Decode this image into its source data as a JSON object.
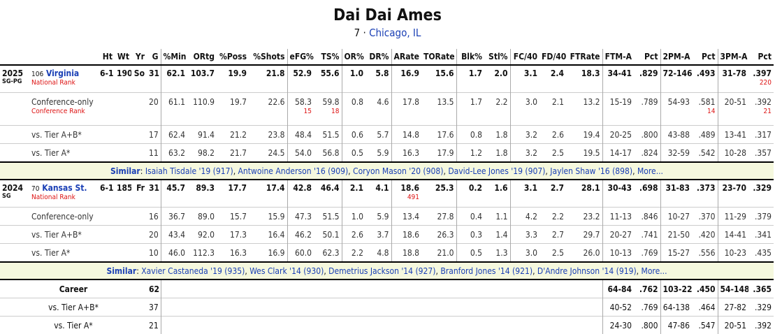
{
  "header": {
    "name": "Dai Dai Ames",
    "number": "7",
    "separator": "·",
    "hometown": "Chicago, IL"
  },
  "columns": [
    "Ht",
    "Wt",
    "Yr",
    "G",
    "%Min",
    "ORtg",
    "%Poss",
    "%Shots",
    "eFG%",
    "TS%",
    "OR%",
    "DR%",
    "ARate",
    "TORate",
    "Blk%",
    "Stl%",
    "FC/40",
    "FD/40",
    "FTRate",
    "FTM-A",
    "Pct",
    "2PM-A",
    "Pct",
    "3PM-A",
    "Pct"
  ],
  "seasons": [
    {
      "year": "2025",
      "position": "SG-PG",
      "team_rank": "106",
      "team": "Virginia",
      "rank_label": "National Rank",
      "values": [
        "6-1",
        "190",
        "So",
        "31",
        "62.1",
        "103.7",
        "19.9",
        "21.8",
        "52.9",
        "55.6",
        "1.0",
        "5.8",
        "16.9",
        "15.6",
        "1.7",
        "2.0",
        "3.1",
        "2.4",
        "18.3",
        "34-41",
        ".829",
        "72-146",
        ".493",
        "31-78",
        ".397"
      ],
      "ranks": {
        "24": "220"
      },
      "splits": [
        {
          "label": "Conference-only",
          "rank_label": "Conference Rank",
          "values": [
            null,
            null,
            null,
            "20",
            "61.1",
            "110.9",
            "19.7",
            "22.6",
            "58.3",
            "59.8",
            "0.8",
            "4.6",
            "17.8",
            "13.5",
            "1.7",
            "2.2",
            "3.0",
            "2.1",
            "13.2",
            "15-19",
            ".789",
            "54-93",
            ".581",
            "20-51",
            ".392"
          ],
          "ranks": {
            "8": "15",
            "9": "18",
            "22": "14",
            "24": "21"
          }
        },
        {
          "label": "vs. Tier A+B*",
          "values": [
            null,
            null,
            null,
            "17",
            "62.4",
            "91.4",
            "21.2",
            "23.8",
            "48.4",
            "51.5",
            "0.6",
            "5.7",
            "14.8",
            "17.6",
            "0.8",
            "1.8",
            "3.2",
            "2.6",
            "19.4",
            "20-25",
            ".800",
            "43-88",
            ".489",
            "13-41",
            ".317"
          ]
        },
        {
          "label": "vs. Tier A*",
          "values": [
            null,
            null,
            null,
            "11",
            "63.2",
            "98.2",
            "21.7",
            "24.5",
            "54.0",
            "56.8",
            "0.5",
            "5.9",
            "16.3",
            "17.9",
            "1.2",
            "1.8",
            "3.2",
            "2.5",
            "19.5",
            "14-17",
            ".824",
            "32-59",
            ".542",
            "10-28",
            ".357"
          ]
        }
      ],
      "similar": {
        "label": "Similar",
        "colon": ": ",
        "separator": ", ",
        "players": [
          "Isaiah Tisdale '19 (917)",
          "Antwoine Anderson '16 (909)",
          "Coryon Mason '20 (908)",
          "David-Lee Jones '19 (907)",
          "Jaylen Shaw '16 (898)"
        ],
        "more": "More..."
      }
    },
    {
      "year": "2024",
      "position": "SG",
      "team_rank": "70",
      "team": "Kansas St.",
      "rank_label": "National Rank",
      "values": [
        "6-1",
        "185",
        "Fr",
        "31",
        "45.7",
        "89.3",
        "17.7",
        "17.4",
        "42.8",
        "46.4",
        "2.1",
        "4.1",
        "18.6",
        "25.3",
        "0.2",
        "1.6",
        "3.1",
        "2.7",
        "28.1",
        "30-43",
        ".698",
        "31-83",
        ".373",
        "23-70",
        ".329"
      ],
      "ranks": {
        "12": "491"
      },
      "splits": [
        {
          "label": "Conference-only",
          "values": [
            null,
            null,
            null,
            "16",
            "36.7",
            "89.0",
            "15.7",
            "15.9",
            "47.3",
            "51.5",
            "1.0",
            "5.9",
            "13.4",
            "27.8",
            "0.4",
            "1.1",
            "4.2",
            "2.2",
            "23.2",
            "11-13",
            ".846",
            "10-27",
            ".370",
            "11-29",
            ".379"
          ]
        },
        {
          "label": "vs. Tier A+B*",
          "values": [
            null,
            null,
            null,
            "20",
            "43.4",
            "92.0",
            "17.3",
            "16.4",
            "46.2",
            "50.1",
            "2.6",
            "3.7",
            "18.6",
            "26.3",
            "0.3",
            "1.4",
            "3.3",
            "2.7",
            "29.7",
            "20-27",
            ".741",
            "21-50",
            ".420",
            "14-41",
            ".341"
          ]
        },
        {
          "label": "vs. Tier A*",
          "values": [
            null,
            null,
            null,
            "10",
            "46.0",
            "112.3",
            "16.3",
            "16.9",
            "60.0",
            "62.3",
            "2.2",
            "4.8",
            "18.8",
            "21.0",
            "0.5",
            "1.3",
            "3.0",
            "2.5",
            "26.0",
            "10-13",
            ".769",
            "15-27",
            ".556",
            "10-23",
            ".435"
          ]
        }
      ],
      "similar": {
        "label": "Similar",
        "colon": ": ",
        "separator": ", ",
        "players": [
          "Xavier Castaneda '19 (935)",
          "Wes Clark '14 (930)",
          "Demetrius Jackson '14 (927)",
          "Branford Jones '14 (921)",
          "D'Andre Johnson '14 (919)"
        ],
        "more": "More..."
      }
    }
  ],
  "career": [
    {
      "label": "Career",
      "g": "62",
      "shooting": [
        "64-84",
        ".762",
        "103-229",
        ".450",
        "54-148",
        ".365"
      ]
    },
    {
      "label": "vs. Tier A+B*",
      "g": "37",
      "shooting": [
        "40-52",
        ".769",
        "64-138",
        ".464",
        "27-82",
        ".329"
      ]
    },
    {
      "label": "vs. Tier A*",
      "g": "21",
      "shooting": [
        "24-30",
        ".800",
        "47-86",
        ".547",
        "20-51",
        ".392"
      ]
    }
  ]
}
